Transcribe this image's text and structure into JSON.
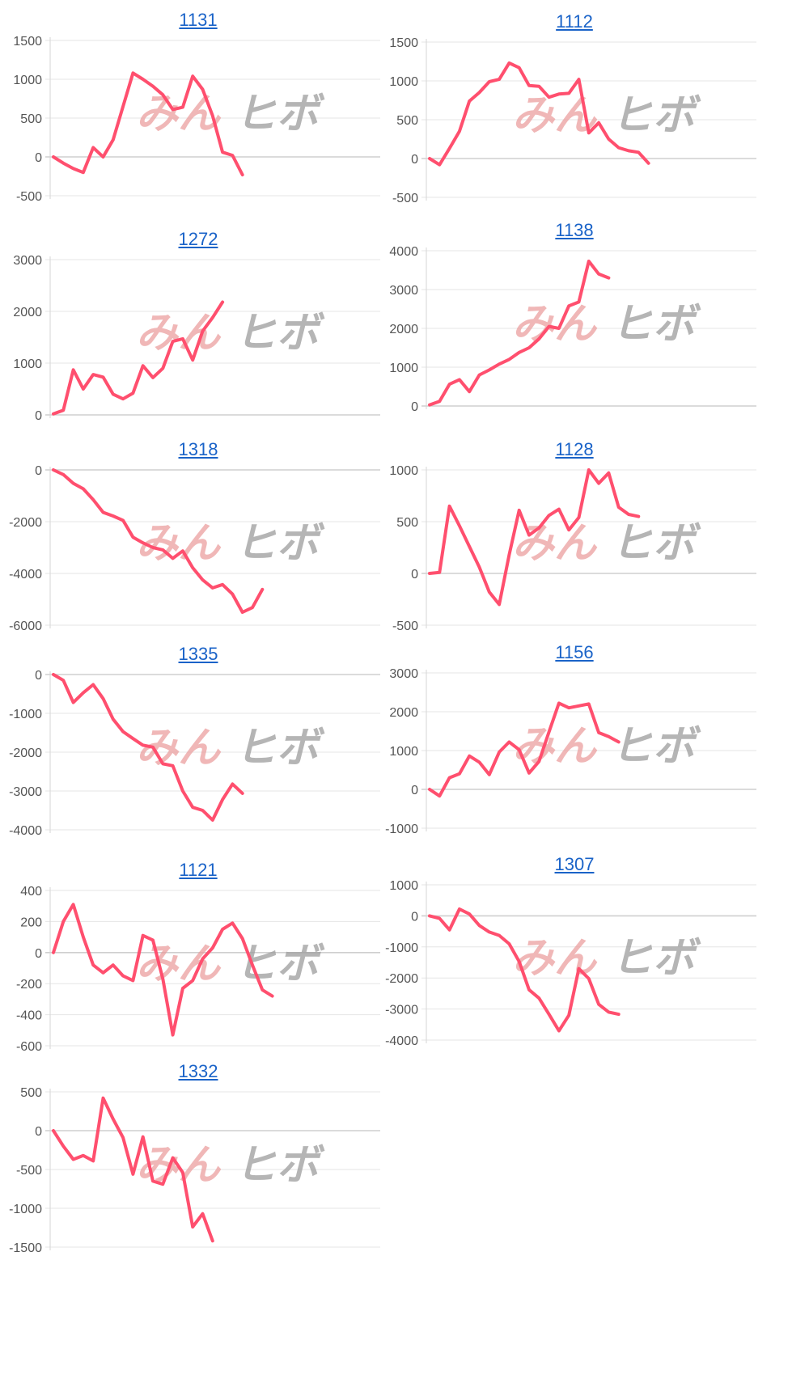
{
  "page": {
    "background": "#ffffff",
    "link_color": "#1a63c8",
    "series_color": "#ff4f6e",
    "grid_color": "#e6e6e6"
  },
  "watermark": {
    "text_a": "みん",
    "text_b": "ヒボ"
  },
  "chart_data": [
    {
      "type": "line",
      "title": "1131",
      "ylim": [
        -500,
        1500
      ],
      "yticks": [
        1500,
        1000,
        500,
        0,
        -500
      ],
      "values": [
        0,
        -80,
        -150,
        -200,
        120,
        0,
        220,
        650,
        1080,
        1000,
        910,
        800,
        610,
        640,
        1040,
        870,
        530,
        60,
        20,
        -230
      ]
    },
    {
      "type": "line",
      "title": "1112",
      "ylim": [
        -500,
        1500
      ],
      "yticks": [
        1500,
        1000,
        500,
        0,
        -500
      ],
      "values": [
        0,
        -80,
        130,
        350,
        740,
        850,
        990,
        1020,
        1230,
        1170,
        940,
        930,
        790,
        830,
        840,
        1020,
        330,
        460,
        250,
        140,
        100,
        80,
        -60
      ]
    },
    {
      "type": "line",
      "title": "1272",
      "ylim": [
        0,
        3000
      ],
      "yticks": [
        3000,
        2000,
        1000,
        0
      ],
      "values": [
        20,
        90,
        870,
        500,
        780,
        730,
        400,
        310,
        420,
        950,
        720,
        900,
        1420,
        1470,
        1060,
        1620,
        1880,
        2180
      ]
    },
    {
      "type": "line",
      "title": "1138",
      "ylim": [
        0,
        4000
      ],
      "yticks": [
        4000,
        3000,
        2000,
        1000,
        0
      ],
      "values": [
        30,
        120,
        560,
        680,
        370,
        800,
        930,
        1080,
        1200,
        1380,
        1500,
        1730,
        2050,
        2000,
        2580,
        2680,
        3730,
        3400,
        3300
      ]
    },
    {
      "type": "line",
      "title": "1318",
      "ylim": [
        -6000,
        0
      ],
      "yticks": [
        0,
        -2000,
        -4000,
        -6000
      ],
      "values": [
        0,
        -180,
        -520,
        -730,
        -1150,
        -1640,
        -1780,
        -1950,
        -2600,
        -2820,
        -3000,
        -3090,
        -3420,
        -3130,
        -3780,
        -4250,
        -4560,
        -4430,
        -4800,
        -5500,
        -5320,
        -4620
      ]
    },
    {
      "type": "line",
      "title": "1128",
      "ylim": [
        -500,
        1000
      ],
      "yticks": [
        1000,
        500,
        0,
        -500
      ],
      "values": [
        0,
        10,
        650,
        460,
        260,
        60,
        -180,
        -300,
        180,
        610,
        370,
        440,
        560,
        620,
        420,
        540,
        1000,
        870,
        970,
        640,
        570,
        550
      ]
    },
    {
      "type": "line",
      "title": "1335",
      "ylim": [
        -4000,
        0
      ],
      "yticks": [
        0,
        -1000,
        -2000,
        -3000,
        -4000
      ],
      "values": [
        0,
        -150,
        -720,
        -470,
        -260,
        -620,
        -1150,
        -1470,
        -1650,
        -1820,
        -1870,
        -2300,
        -2350,
        -3000,
        -3420,
        -3500,
        -3750,
        -3220,
        -2820,
        -3060
      ]
    },
    {
      "type": "line",
      "title": "1156",
      "ylim": [
        -1000,
        3000
      ],
      "yticks": [
        3000,
        2000,
        1000,
        0,
        -1000
      ],
      "values": [
        0,
        -170,
        300,
        400,
        860,
        700,
        380,
        960,
        1220,
        1020,
        420,
        720,
        1480,
        2220,
        2100,
        2150,
        2200,
        1460,
        1360,
        1220
      ]
    },
    {
      "type": "line",
      "title": "1121",
      "ylim": [
        -600,
        400
      ],
      "yticks": [
        400,
        200,
        0,
        -200,
        -400,
        -600
      ],
      "values": [
        0,
        200,
        310,
        100,
        -80,
        -130,
        -80,
        -150,
        -180,
        110,
        80,
        -170,
        -530,
        -230,
        -180,
        -40,
        30,
        150,
        190,
        90,
        -80,
        -240,
        -280
      ]
    },
    {
      "type": "line",
      "title": "1307",
      "ylim": [
        -4000,
        1000
      ],
      "yticks": [
        1000,
        0,
        -1000,
        -2000,
        -3000,
        -4000
      ],
      "values": [
        0,
        -80,
        -450,
        220,
        60,
        -310,
        -520,
        -630,
        -900,
        -1470,
        -2380,
        -2650,
        -3170,
        -3700,
        -3200,
        -1700,
        -2020,
        -2850,
        -3100,
        -3170
      ]
    },
    {
      "type": "line",
      "title": "1332",
      "ylim": [
        -1500,
        500
      ],
      "yticks": [
        500,
        0,
        -500,
        -1000,
        -1500
      ],
      "values": [
        0,
        -200,
        -370,
        -320,
        -390,
        420,
        150,
        -90,
        -560,
        -80,
        -650,
        -690,
        -350,
        -540,
        -1240,
        -1070,
        -1420
      ]
    }
  ]
}
